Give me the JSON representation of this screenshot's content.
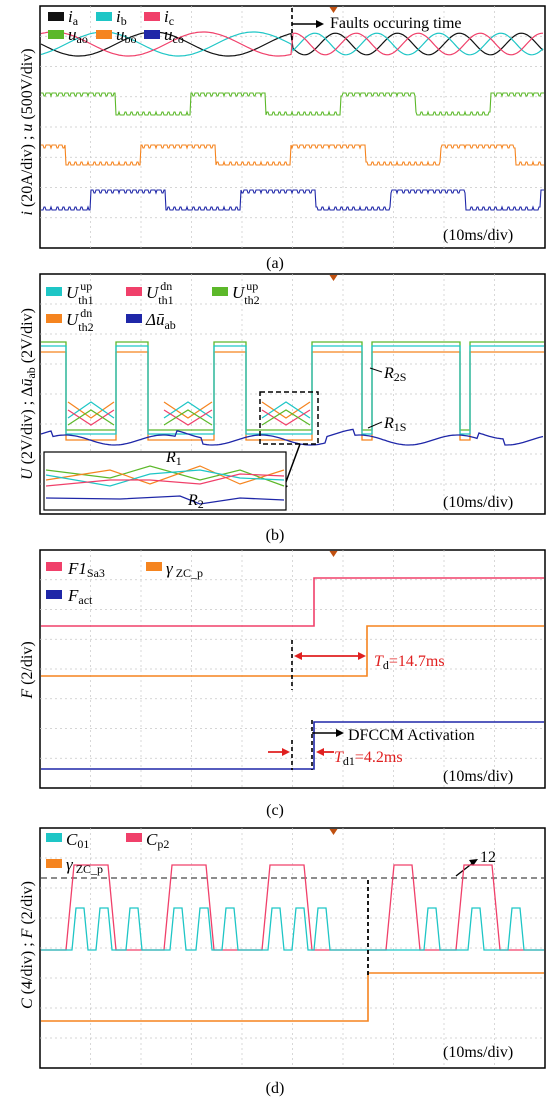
{
  "colors": {
    "black": "#111111",
    "cyan": "#1ec6c6",
    "pink": "#f0406a",
    "green": "#5cb82a",
    "orange": "#f5841f",
    "navy": "#1f27a8",
    "grid": "#c8c8c8",
    "red_ann": "#e02020"
  },
  "time_scale": "(10ms/div)",
  "chart_data": [
    {
      "type": "line",
      "panel": "(a)",
      "ylabel": "i (20A/div) ; u (500V/div)",
      "time_scale": "(10ms/div)",
      "grid": true,
      "legend": [
        {
          "sym": "i",
          "sub": "a",
          "color": "#111111"
        },
        {
          "sym": "i",
          "sub": "b",
          "color": "#1ec6c6"
        },
        {
          "sym": "i",
          "sub": "c",
          "color": "#f0406a"
        },
        {
          "sym": "u",
          "sub": "ao",
          "color": "#5cb82a"
        },
        {
          "sym": "u",
          "sub": "bo",
          "color": "#f5841f"
        },
        {
          "sym": "u",
          "sub": "co",
          "color": "#1f27a8"
        }
      ],
      "annotations": [
        "Faults occuring time"
      ],
      "fault_time_div": 5.0
    },
    {
      "type": "line",
      "panel": "(b)",
      "ylabel": "U (2V/div) ; Δū_ab (2V/div)",
      "time_scale": "(10ms/div)",
      "grid": true,
      "legend": [
        {
          "sym": "U",
          "sup": "up",
          "sub": "th1",
          "color": "#1ec6c6"
        },
        {
          "sym": "U",
          "sup": "dn",
          "sub": "th1",
          "color": "#f0406a"
        },
        {
          "sym": "U",
          "sup": "up",
          "sub": "th2",
          "color": "#5cb82a"
        },
        {
          "sym": "U",
          "sup": "dn",
          "sub": "th2",
          "color": "#f5841f"
        },
        {
          "sym": "Δū",
          "sub": "ab",
          "color": "#1f27a8"
        }
      ],
      "annotations": [
        "R2S",
        "R1S",
        "R1",
        "R2"
      ]
    },
    {
      "type": "line",
      "panel": "(c)",
      "ylabel": "F (2/div)",
      "time_scale": "(10ms/div)",
      "grid": true,
      "legend": [
        {
          "sym": "F1",
          "sub": "Sa3",
          "color": "#f0406a"
        },
        {
          "sym": "γ",
          "sub": "ZC_p",
          "color": "#f5841f"
        },
        {
          "sym": "F",
          "sub": "act",
          "color": "#1f27a8"
        }
      ],
      "annotations": [
        "Td=14.7ms",
        "DFCCM Activation",
        "Td1=4.2ms"
      ],
      "Td_ms": 14.7,
      "Td1_ms": 4.2,
      "fault_time_div": 5.0
    },
    {
      "type": "line",
      "panel": "(d)",
      "ylabel": "C (4/div) ; F (2/div)",
      "time_scale": "(10ms/div)",
      "grid": true,
      "legend": [
        {
          "sym": "C",
          "sub": "01",
          "color": "#1ec6c6"
        },
        {
          "sym": "C",
          "sub": "p2",
          "color": "#f0406a"
        },
        {
          "sym": "γ",
          "sub": "ZC_p",
          "color": "#f5841f"
        }
      ],
      "threshold": 12,
      "annotations": [
        "12"
      ]
    }
  ],
  "panel_labels": [
    "(a)",
    "(b)",
    "(c)",
    "(d)"
  ],
  "text": {
    "a_ylabel": "i (20A/div) ; u (500V/div)",
    "b_ylabel": "U (2V/div) ; Δū_ab (2V/div)",
    "c_ylabel": "F (2/div)",
    "d_ylabel": "C (4/div) ; F (2/div)",
    "fault_text": "Faults occuring time",
    "td_text": "Td=14.7ms",
    "dfccm_text": "DFCCM Activation",
    "td1_text": "Td1=4.2ms",
    "threshold_text": "12",
    "r2s": "R2S",
    "r1s": "R1S",
    "r1": "R1",
    "r2": "R2"
  }
}
